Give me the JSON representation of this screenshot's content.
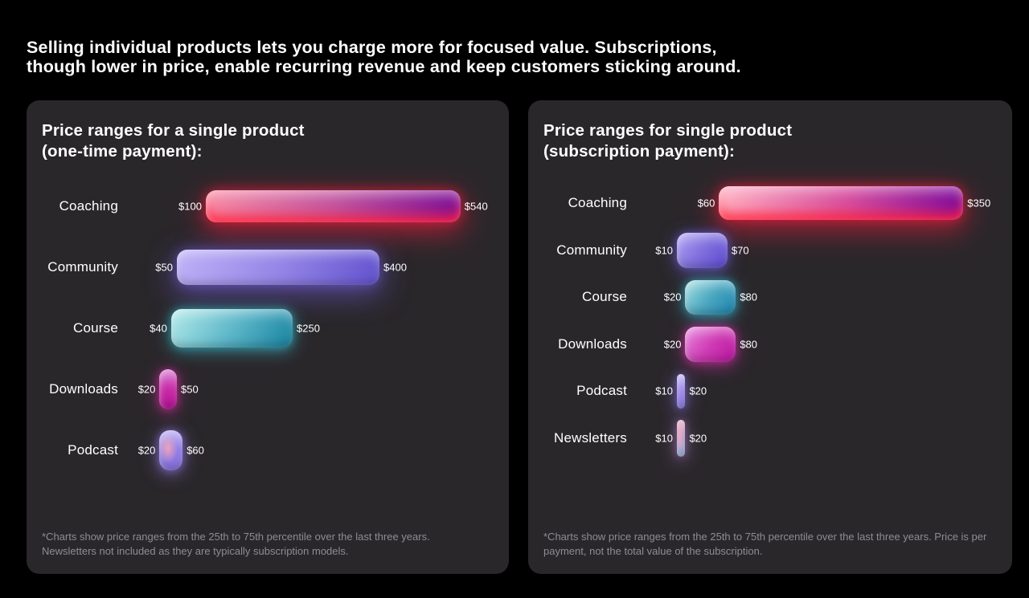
{
  "page": {
    "background": "#000000",
    "card_background": "#2a272b",
    "text_primary": "#ffffff",
    "text_muted": "#8f8b94"
  },
  "header": {
    "lines": [
      "Selling individual products lets you charge more for focused value. Subscriptions,",
      "though lower in price, enable recurring revenue and keep customers sticking around."
    ]
  },
  "chart_data": [
    {
      "type": "bar",
      "subtype": "horizontal-range-bars",
      "title": "Price ranges for a single product (one-time payment):",
      "title_lines": [
        "Price ranges for a single product",
        "(one-time payment):"
      ],
      "value_prefix": "$",
      "categories": [
        "Coaching",
        "Community",
        "Course",
        "Downloads",
        "Podcast"
      ],
      "bars": [
        {
          "label": "Coaching",
          "min": 100,
          "max": 540,
          "color": {
            "from": "#f98da6",
            "mid": "#c0539f",
            "to": "#7b0d96",
            "glow": "rgba(255,30,64,0.55)",
            "rim": "rgba(255,32,56,0.9)"
          }
        },
        {
          "label": "Community",
          "min": 50,
          "max": 400,
          "color": {
            "from": "#beb0f7",
            "mid": "#9484e6",
            "to": "#6353cf",
            "glow": "rgba(122,100,235,0.5)"
          }
        },
        {
          "label": "Course",
          "min": 40,
          "max": 250,
          "color": {
            "from": "#b5ebea",
            "mid": "#5cb6c8",
            "to": "#16819f",
            "glow": "rgba(60,210,230,0.45)"
          }
        },
        {
          "label": "Downloads",
          "min": 20,
          "max": 50,
          "color": {
            "from": "#d470cf",
            "mid": "#c928a5",
            "to": "#b30d92",
            "glow": "rgba(225,45,170,0.5)"
          }
        },
        {
          "label": "Podcast",
          "min": 20,
          "max": 60,
          "color": {
            "from": "#b4a5f3",
            "mid": "#8f7de6",
            "to": "#8672e0",
            "accent": "#eba2bd",
            "glow": "rgba(160,130,245,0.5)"
          }
        }
      ],
      "xlim": [
        0,
        620
      ],
      "grid": false,
      "legend": false,
      "footnote": "*Charts show price ranges from the 25th to 75th percentile over the last three years. Newsletters not included as they are typically subscription models.",
      "footnote_lines": [
        "*Charts show price ranges from the 25th to 75th percentile over the last three years.",
        "Newsletters not included as they are typically subscription models."
      ]
    },
    {
      "type": "bar",
      "subtype": "horizontal-range-bars",
      "title": "Price ranges for single product (subscription payment):",
      "title_lines": [
        "Price ranges for single product",
        "(subscription payment):"
      ],
      "value_prefix": "$",
      "categories": [
        "Coaching",
        "Community",
        "Course",
        "Downloads",
        "Podcast",
        "Newsletters"
      ],
      "bars": [
        {
          "label": "Coaching",
          "min": 60,
          "max": 350,
          "color": {
            "from": "#ffb3c3",
            "mid": "#d8509f",
            "to": "#7c0a9b",
            "glow": "rgba(255,30,64,0.55)",
            "rim": "rgba(255,32,56,0.9)"
          }
        },
        {
          "label": "Community",
          "min": 10,
          "max": 70,
          "color": {
            "from": "#b0a2f3",
            "mid": "#7f6edd",
            "to": "#5a49cf",
            "glow": "rgba(120,98,235,0.5)"
          }
        },
        {
          "label": "Course",
          "min": 20,
          "max": 80,
          "color": {
            "from": "#a2dfe1",
            "mid": "#4aa6c0",
            "to": "#1a83ad",
            "glow": "rgba(60,205,230,0.45)"
          }
        },
        {
          "label": "Downloads",
          "min": 20,
          "max": 80,
          "color": {
            "from": "#e784dd",
            "mid": "#cf3bb4",
            "to": "#ba13a0",
            "glow": "rgba(228,50,180,0.5)"
          }
        },
        {
          "label": "Podcast",
          "min": 10,
          "max": 20,
          "color": {
            "from": "#b8a9f7",
            "mid": "#9784ea",
            "to": "#7d68e0",
            "glow": "rgba(150,125,245,0.5)"
          }
        },
        {
          "label": "Newsletters",
          "min": 10,
          "max": 20,
          "color": {
            "from": "#e998b8",
            "mid": "#b9a0cd",
            "to": "#94a9dc",
            "accent": "#ef9cb8",
            "glow": "rgba(190,140,220,0.45)"
          }
        }
      ],
      "xlim": [
        0,
        410
      ],
      "grid": false,
      "legend": false,
      "footnote": "*Charts show price ranges from the 25th to 75th percentile over the last three years. Price is per payment, not the total value of the subscription.",
      "footnote_lines": [
        "*Charts show price ranges from the 25th to 75th percentile over the last three years. Price is per",
        "payment, not the total value of the subscription."
      ]
    }
  ]
}
